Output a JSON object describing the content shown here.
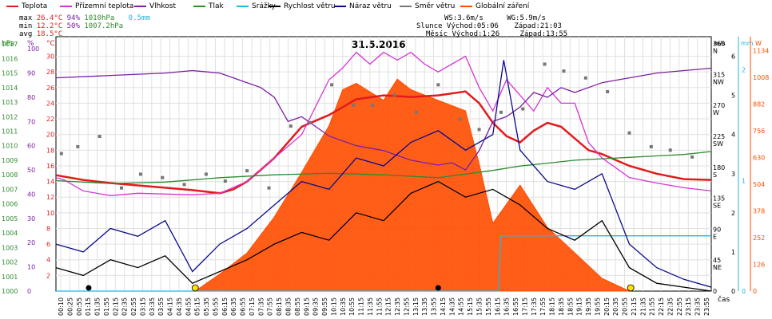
{
  "legend": [
    {
      "label": "Teplota",
      "color": "#e31a1c"
    },
    {
      "label": "Přízemní teplota",
      "color": "#d633d6"
    },
    {
      "label": "Vlhkost",
      "color": "#7a1fa2"
    },
    {
      "label": "Tlak",
      "color": "#2e8b2e"
    },
    {
      "label": "Srážky",
      "color": "#1fb6e6"
    },
    {
      "label": "Rychlost větru",
      "color": "#000000"
    },
    {
      "label": "Náraz větru",
      "color": "#0a0a8c"
    },
    {
      "label": "Směr větru",
      "color": "#777777"
    },
    {
      "label": "Globální záření",
      "color": "#ff4d00"
    }
  ],
  "stats": {
    "max_label": "max",
    "max_temp": "26.4°C",
    "max_hum": "94%",
    "max_press": "1010hPa",
    "max_rain": "0.5mm",
    "min_label": "min",
    "min_temp": "12.2°C",
    "min_hum": "50%",
    "min_press": "1007.2hPa",
    "avg_label": "avg",
    "avg_temp": "18.5°C"
  },
  "sun": {
    "ws": "WS:3.6m/s",
    "wg": "WG:5.9m/s",
    "sun_rise": "Slunce Východ:05:06",
    "sun_set": "Západ:21:03",
    "moon_rise": "Měsíc Východ:1:26",
    "moon_set": "Západ:13:55"
  },
  "chart_data": {
    "type": "line",
    "title": "31.5.2016",
    "xlabel": "čas",
    "axes_units": {
      "pressure": "hPa",
      "percent": "%",
      "temperature": "°C",
      "wind_speed": "m/s",
      "rain": "mm",
      "radiation": "W"
    },
    "x_ticks": [
      "00:10",
      "00:25",
      "00:55",
      "01:15",
      "01:35",
      "01:55",
      "02:15",
      "02:35",
      "02:55",
      "03:15",
      "03:35",
      "03:55",
      "04:15",
      "04:35",
      "04:55",
      "05:15",
      "05:35",
      "05:55",
      "06:15",
      "06:35",
      "06:55",
      "07:15",
      "07:35",
      "07:55",
      "08:15",
      "08:35",
      "08:55",
      "09:15",
      "09:35",
      "09:55",
      "10:15",
      "10:35",
      "10:55",
      "11:15",
      "11:35",
      "11:55",
      "12:15",
      "12:35",
      "12:55",
      "13:15",
      "13:35",
      "13:55",
      "14:15",
      "14:35",
      "14:55",
      "15:15",
      "15:35",
      "15:55",
      "16:15",
      "16:35",
      "16:55",
      "17:15",
      "17:35",
      "17:55",
      "18:15",
      "18:35",
      "18:55",
      "19:15",
      "19:35",
      "19:55",
      "20:15",
      "20:35",
      "20:55",
      "21:15",
      "21:35",
      "21:55",
      "22:15",
      "22:35",
      "22:55",
      "23:15",
      "23:35",
      "23:55"
    ],
    "pressure_ticks": [
      "1000",
      "1001",
      "1002",
      "1003",
      "1004",
      "1005",
      "1006",
      "1007",
      "1008",
      "1009",
      "1010",
      "1011",
      "1012",
      "1013",
      "1014",
      "1015",
      "1016",
      "1017"
    ],
    "percent_ticks": [
      "0",
      "10",
      "20",
      "30",
      "40",
      "50",
      "60",
      "70",
      "80",
      "90",
      "100"
    ],
    "temperature_ticks": [
      "2",
      "4",
      "6",
      "8",
      "10",
      "12",
      "14",
      "16",
      "18",
      "20",
      "22",
      "24",
      "26",
      "28",
      "30"
    ],
    "direction_ticks": [
      "0",
      "45 NE",
      "90 E",
      "135 SE",
      "180 S",
      "225 SW",
      "270 W",
      "315 NW",
      "360 N"
    ],
    "wind_ticks": [
      "0",
      "1",
      "2",
      "3",
      "4",
      "5",
      "6"
    ],
    "rain_ticks": [
      "0",
      "1",
      "2"
    ],
    "radiation_ticks": [
      "0",
      "126",
      "252",
      "378",
      "504",
      "630",
      "756",
      "882",
      "1008",
      "1134"
    ],
    "series": [
      {
        "name": "Teplota",
        "unit": "°C",
        "x": [
          0,
          1,
          2,
          3,
          4,
          5,
          6,
          6.5,
          7,
          7.5,
          8,
          9,
          10,
          10.5,
          11,
          12,
          13,
          14,
          15,
          15.5,
          16,
          16.5,
          17,
          17.5,
          18,
          18.5,
          19,
          19.5,
          20,
          21,
          22,
          23,
          24
        ],
        "values": [
          14.8,
          14.2,
          13.8,
          13.5,
          13.2,
          12.9,
          12.5,
          13,
          14,
          15.5,
          17,
          21,
          22.5,
          23.5,
          24.5,
          25,
          24.8,
          25,
          25.5,
          24,
          21.5,
          19.8,
          19,
          20.5,
          21.5,
          21,
          19.5,
          18,
          17.5,
          16,
          15,
          14.3,
          14.2
        ]
      },
      {
        "name": "Přízemní teplota",
        "unit": "°C",
        "x": [
          0,
          0.3,
          1,
          2,
          3,
          4,
          5,
          6,
          7,
          8,
          9,
          10,
          10.5,
          11,
          11.5,
          12,
          12.5,
          13,
          13.5,
          14,
          15,
          15.5,
          16,
          16.5,
          17,
          17.5,
          18,
          18.5,
          19,
          19.5,
          20,
          21,
          22,
          23,
          24
        ],
        "values": [
          14.5,
          14.2,
          12.8,
          12.2,
          12.5,
          12.4,
          12.3,
          12.5,
          14,
          17,
          20,
          27,
          28.5,
          30.5,
          29,
          30.5,
          29.5,
          30.5,
          29,
          28,
          30,
          26,
          23,
          27,
          25,
          23,
          26,
          24,
          24,
          19,
          17,
          14.5,
          13.8,
          13.2,
          12.8
        ]
      },
      {
        "name": "Vlhkost",
        "unit": "%",
        "x": [
          0,
          2,
          4,
          5,
          6,
          7,
          7.5,
          8,
          8.5,
          9,
          9.5,
          10,
          11,
          12,
          13,
          14,
          14.5,
          15,
          15.5,
          16,
          16.5,
          17,
          17.5,
          18,
          18.5,
          19,
          19.5,
          20,
          21,
          22,
          23,
          24
        ],
        "values": [
          88,
          89,
          90,
          91,
          90,
          86,
          84,
          80,
          70,
          72,
          68,
          64,
          60,
          58,
          54,
          52,
          53,
          50,
          58,
          70,
          72,
          76,
          82,
          80,
          84,
          82,
          84,
          86,
          88,
          90,
          91,
          92
        ]
      },
      {
        "name": "Tlak",
        "unit": "hPa",
        "x": [
          0,
          2,
          4,
          6,
          8,
          10,
          12,
          14,
          16,
          17,
          18,
          19,
          20,
          21,
          22,
          23,
          24
        ],
        "values": [
          1007.6,
          1007.4,
          1007.5,
          1007.8,
          1008.0,
          1008.1,
          1008.0,
          1007.8,
          1008.3,
          1008.6,
          1008.8,
          1009.0,
          1009.1,
          1009.2,
          1009.3,
          1009.4,
          1009.6
        ]
      },
      {
        "name": "Srážky",
        "unit": "mm",
        "x": [
          0,
          16.2,
          16.3,
          24
        ],
        "values": [
          0,
          0,
          0.5,
          0.5
        ]
      },
      {
        "name": "Rychlost větru",
        "unit": "m/s",
        "x": [
          0,
          1,
          2,
          3,
          4,
          5,
          6,
          7,
          8,
          9,
          10,
          11,
          12,
          13,
          14,
          15,
          16,
          17,
          18,
          19,
          20,
          21,
          22,
          23,
          24
        ],
        "values": [
          0.6,
          0.4,
          0.8,
          0.6,
          0.9,
          0.2,
          0.5,
          0.8,
          1.2,
          1.5,
          1.3,
          2.0,
          1.8,
          2.5,
          2.8,
          2.4,
          2.6,
          2.2,
          1.6,
          1.3,
          1.8,
          0.6,
          0.2,
          0.1,
          0.0
        ]
      },
      {
        "name": "Náraz větru",
        "unit": "m/s",
        "x": [
          0,
          1,
          2,
          3,
          4,
          5,
          6,
          7,
          8,
          9,
          10,
          11,
          12,
          13,
          14,
          15,
          16,
          16.4,
          17,
          18,
          19,
          20,
          21,
          22,
          23,
          24
        ],
        "values": [
          1.2,
          1.0,
          1.6,
          1.4,
          1.8,
          0.5,
          1.2,
          1.6,
          2.2,
          2.8,
          2.6,
          3.4,
          3.2,
          3.8,
          4.1,
          3.6,
          4.0,
          5.9,
          3.6,
          2.8,
          2.6,
          3.0,
          1.2,
          0.6,
          0.3,
          0.1
        ]
      },
      {
        "name": "Globální záření",
        "unit": "W",
        "x": [
          5.1,
          6,
          7,
          8,
          9,
          10,
          10.5,
          11,
          12,
          12.5,
          13,
          14,
          15,
          15.5,
          16,
          17,
          18,
          19,
          20,
          21
        ],
        "values": [
          0,
          80,
          180,
          350,
          560,
          780,
          950,
          980,
          900,
          1000,
          950,
          900,
          850,
          600,
          320,
          500,
          300,
          180,
          60,
          0
        ]
      }
    ],
    "wind_direction": {
      "name": "Směr větru",
      "unit": "°",
      "x": [
        0.2,
        0.8,
        1.6,
        2.4,
        3.1,
        3.9,
        4.7,
        5.5,
        6.2,
        7.0,
        7.8,
        8.6,
        9.3,
        10.1,
        10.9,
        11.6,
        12.4,
        13.2,
        14.0,
        14.8,
        15.5,
        16.3,
        17.1,
        17.9,
        18.6,
        19.4,
        20.2,
        21.0,
        21.8,
        22.5,
        23.3
      ],
      "values": [
        200,
        210,
        225,
        150,
        170,
        165,
        155,
        170,
        160,
        175,
        150,
        240,
        245,
        300,
        270,
        270,
        285,
        260,
        300,
        250,
        235,
        260,
        265,
        330,
        320,
        310,
        290,
        230,
        210,
        205,
        195
      ]
    },
    "overlay_points": {
      "moon_marker_x": [
        1.2,
        14.0
      ],
      "sun_marker_x": [
        5.1,
        21.05
      ]
    }
  }
}
